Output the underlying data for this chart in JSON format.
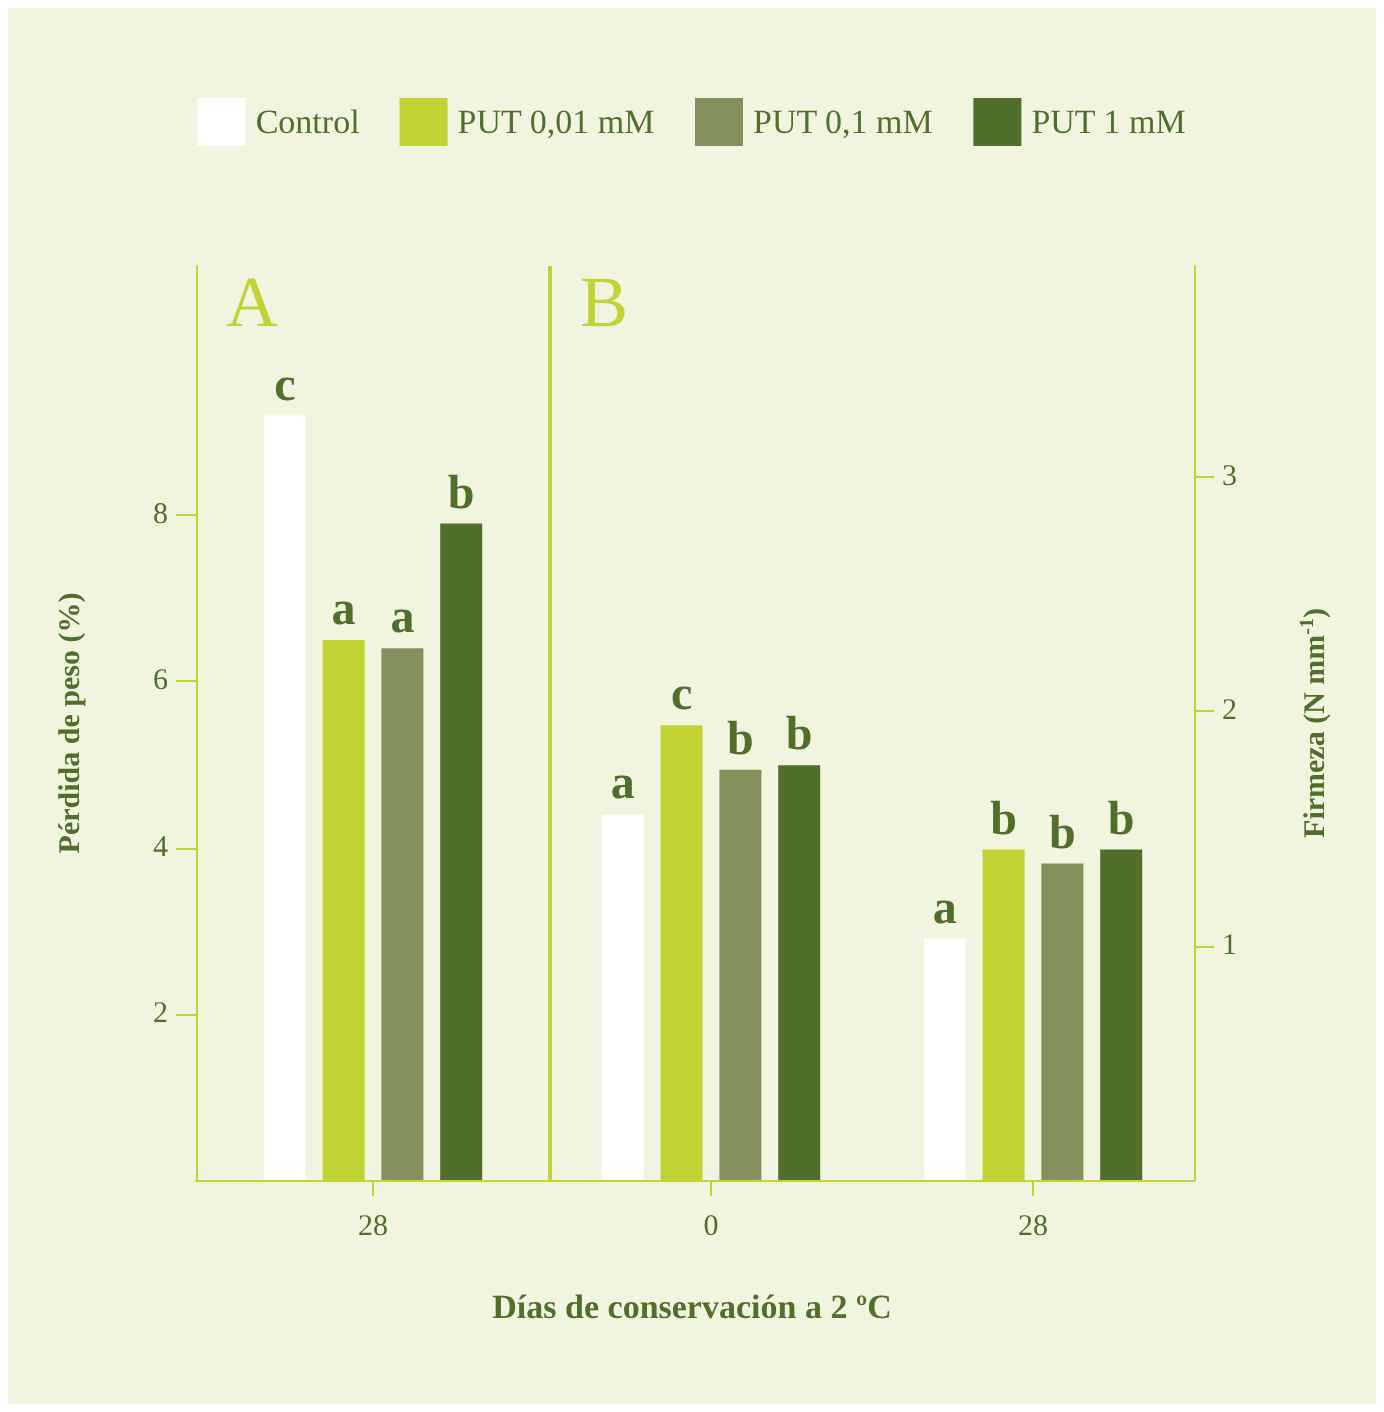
{
  "chart_data": [
    {
      "type": "bar",
      "title": "A",
      "xlabel": "Días de conservación a 2 ºC",
      "ylabel": "Pérdida de peso (%)",
      "categories": [
        "28"
      ],
      "ylim": [
        0,
        11
      ],
      "yticks": [
        2,
        4,
        6,
        8
      ],
      "grid": false,
      "legend": "top",
      "series": [
        {
          "name": "Control",
          "color": "#ffffff",
          "values": [
            9.2
          ],
          "value_labels": [
            "c"
          ]
        },
        {
          "name": "PUT 0,01 mM",
          "color": "#c3d234",
          "values": [
            6.5
          ],
          "value_labels": [
            "a"
          ]
        },
        {
          "name": "PUT 0,1 mM",
          "color": "#85915c",
          "values": [
            6.4
          ],
          "value_labels": [
            "a"
          ]
        },
        {
          "name": "PUT 1 mM",
          "color": "#4f6f2a",
          "values": [
            7.9
          ],
          "value_labels": [
            "b"
          ]
        }
      ]
    },
    {
      "type": "bar",
      "title": "B",
      "y2label": "Firmeza (N mm$^{-1}$)",
      "categories": [
        "0",
        "28"
      ],
      "y2lim": [
        0,
        3.9
      ],
      "y2ticks": [
        1,
        2,
        3
      ],
      "grid": false,
      "legend": false,
      "series": [
        {
          "color": "#ffffff",
          "axis": "y2",
          "values": [
            1.56,
            1.03
          ],
          "value_labels": [
            "a",
            "a"
          ]
        },
        {
          "color": "#c3d234",
          "axis": "y2",
          "values": [
            1.94,
            1.41
          ],
          "value_labels": [
            "c",
            "b"
          ]
        },
        {
          "color": "#85915c",
          "axis": "y2",
          "values": [
            1.75,
            1.35
          ],
          "value_labels": [
            "b",
            "b"
          ]
        },
        {
          "color": "#4f6f2a",
          "axis": "y2",
          "values": [
            1.77,
            1.41
          ],
          "value_labels": [
            "b",
            "b"
          ]
        }
      ]
    }
  ]
}
